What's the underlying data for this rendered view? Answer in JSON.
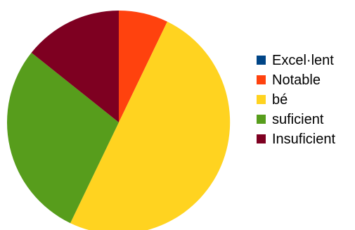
{
  "chart_data": {
    "type": "pie",
    "title": "",
    "start_angle_deg": 0,
    "direction": "clockwise",
    "legend_position": "right",
    "slices": [
      {
        "label": "Excel·lent",
        "value": 0,
        "color": "#004586"
      },
      {
        "label": "Notable",
        "value": 2,
        "color": "#ff420e"
      },
      {
        "label": "bé",
        "value": 14,
        "color": "#ffd320"
      },
      {
        "label": "suficient",
        "value": 8,
        "color": "#579d1c"
      },
      {
        "label": "Insuficient",
        "value": 4,
        "color": "#7e0021"
      }
    ]
  }
}
